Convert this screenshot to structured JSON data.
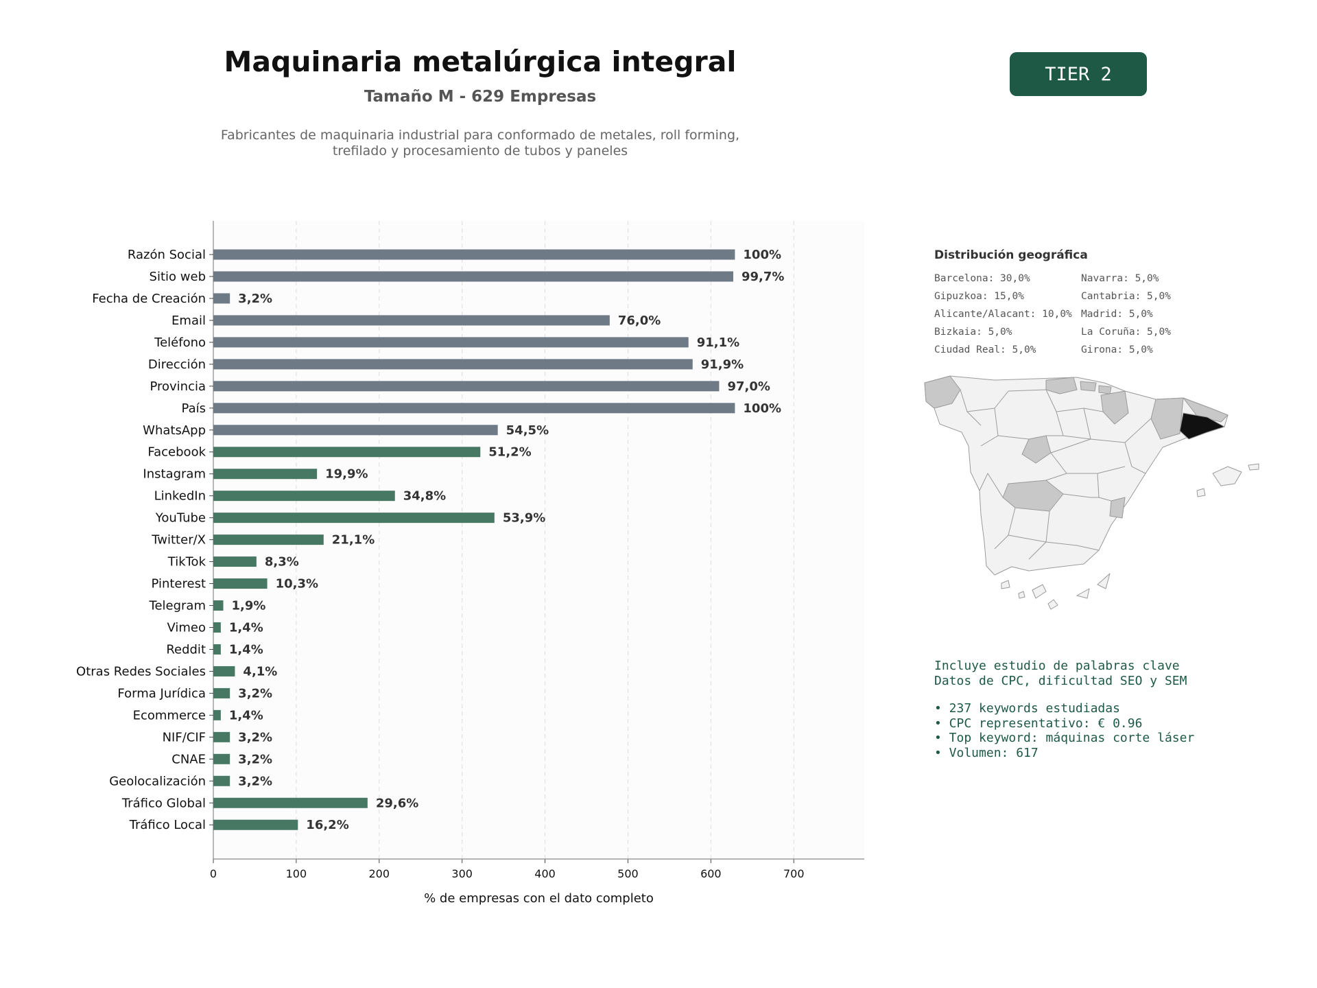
{
  "header": {
    "title": "Maquinaria metalúrgica integral",
    "subtitle": "Tamaño M - 629 Empresas",
    "description": "Fabricantes de maquinaria industrial para conformado de metales, roll forming, trefilado y procesamiento de tubos y paneles",
    "tier_label": "TIER 2"
  },
  "colors": {
    "badge_bg": "#1e5945",
    "bar_gray": "#6e7b86",
    "bar_green": "#477864",
    "text_green": "#1e5945"
  },
  "chart_data": {
    "type": "bar",
    "orientation": "horizontal",
    "xlabel": "% de empresas con el dato completo",
    "xlim": [
      0,
      785
    ],
    "xticks": [
      0,
      100,
      200,
      300,
      400,
      500,
      600,
      700
    ],
    "grid": "vertical dashed",
    "categories": [
      "Razón Social",
      "Sitio web",
      "Fecha de Creación",
      "Email",
      "Teléfono",
      "Dirección",
      "Provincia",
      "País",
      "WhatsApp",
      "Facebook",
      "Instagram",
      "LinkedIn",
      "YouTube",
      "Twitter/X",
      "TikTok",
      "Pinterest",
      "Telegram",
      "Vimeo",
      "Reddit",
      "Otras Redes Sociales",
      "Forma Jurídica",
      "Ecommerce",
      "NIF/CIF",
      "CNAE",
      "Geolocalización",
      "Tráfico Global",
      "Tráfico Local"
    ],
    "values": [
      629,
      627,
      20,
      478,
      573,
      578,
      610,
      629,
      343,
      322,
      125,
      219,
      339,
      133,
      52,
      65,
      12,
      9,
      9,
      26,
      20,
      9,
      20,
      20,
      20,
      186,
      102
    ],
    "labels": [
      "100%",
      "99,7%",
      "3,2%",
      "76,0%",
      "91,1%",
      "91,9%",
      "97,0%",
      "100%",
      "54,5%",
      "51,2%",
      "19,9%",
      "34,8%",
      "53,9%",
      "21,1%",
      "8,3%",
      "10,3%",
      "1,9%",
      "1,4%",
      "1,4%",
      "4,1%",
      "3,2%",
      "1,4%",
      "3,2%",
      "3,2%",
      "3,2%",
      "29,6%",
      "16,2%"
    ],
    "bar_group": [
      "gray",
      "gray",
      "gray",
      "gray",
      "gray",
      "gray",
      "gray",
      "gray",
      "gray",
      "green",
      "green",
      "green",
      "green",
      "green",
      "green",
      "green",
      "green",
      "green",
      "green",
      "green",
      "green",
      "green",
      "green",
      "green",
      "green",
      "green",
      "green"
    ]
  },
  "geo": {
    "title": "Distribución geográfica",
    "items": [
      "Barcelona: 30,0%",
      "Navarra: 5,0%",
      "Gipuzkoa: 15,0%",
      "Cantabria: 5,0%",
      "Alicante/Alacant: 10,0%",
      "Madrid: 5,0%",
      "Bizkaia: 5,0%",
      "La Coruña: 5,0%",
      "Ciudad Real: 5,0%",
      "Girona: 5,0%"
    ]
  },
  "seo": {
    "line1": "Incluye estudio de palabras clave",
    "line2": "Datos de CPC, dificultad SEO y SEM",
    "bullet1": "• 237 keywords estudiadas",
    "bullet2": "• CPC representativo: € 0.96",
    "bullet3": "• Top keyword: máquinas corte láser",
    "bullet4": "• Volumen: 617"
  }
}
